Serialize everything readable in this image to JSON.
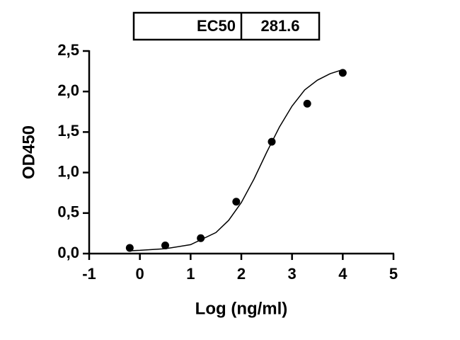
{
  "chart_data": {
    "type": "scatter",
    "x_label": "Log (ng/ml)",
    "y_label": "OD450",
    "ec50": {
      "label": "EC50",
      "value": 281.6
    },
    "x": [
      -0.2,
      0.5,
      1.2,
      1.9,
      2.6,
      3.3,
      4.0
    ],
    "values": [
      0.07,
      0.1,
      0.19,
      0.64,
      1.38,
      1.85,
      2.23
    ],
    "color": "#000000",
    "curve": {
      "x": [
        -0.2,
        0,
        0.5,
        1.0,
        1.5,
        1.75,
        2.0,
        2.25,
        2.5,
        2.75,
        3.0,
        3.25,
        3.5,
        3.75,
        4.0
      ],
      "y": [
        0.035,
        0.04,
        0.06,
        0.11,
        0.26,
        0.41,
        0.63,
        0.92,
        1.25,
        1.56,
        1.82,
        2.02,
        2.14,
        2.22,
        2.27
      ]
    },
    "xlim": [
      -1,
      5
    ],
    "xticks": [
      -1,
      0,
      1,
      2,
      3,
      4,
      5
    ],
    "ylim": [
      0,
      2.5
    ],
    "yticks": [
      {
        "value": 0,
        "label": "0,0"
      },
      {
        "value": 0.5,
        "label": "0,5"
      },
      {
        "value": 1,
        "label": "1,0"
      },
      {
        "value": 1.5,
        "label": "1,5"
      },
      {
        "value": 2,
        "label": "2,0"
      },
      {
        "value": 2.5,
        "label": "2,5"
      }
    ]
  }
}
